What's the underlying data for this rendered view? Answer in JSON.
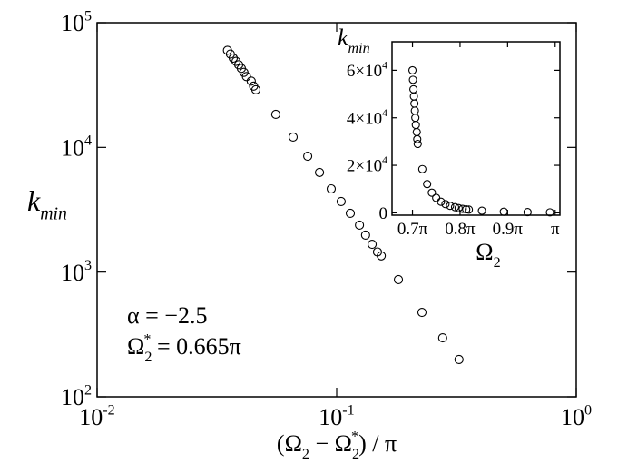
{
  "chart_data": [
    {
      "type": "scatter",
      "log_x": true,
      "log_y": true,
      "color": "#000000",
      "y_label": {
        "text": "k",
        "sub": "min"
      },
      "x_label": {
        "open": "(Ω",
        "sub1": "2",
        "mid": " − Ω",
        "sub2": "2",
        "sup2": "*",
        "close": ") / π"
      },
      "annotations": [
        {
          "text": "α = −2.5"
        },
        {
          "text": "Ω",
          "sub": "2",
          "sup": "*",
          "rest": " = 0.665π"
        }
      ],
      "xlim": [
        0.01,
        1
      ],
      "xticks": [
        {
          "value": 0.01,
          "label": "10",
          "sup": "-2"
        },
        {
          "value": 0.1,
          "label": "10",
          "sup": "-1"
        },
        {
          "value": 1,
          "label": "10",
          "sup": "0"
        }
      ],
      "ylim": [
        100,
        100000
      ],
      "yticks": [
        {
          "value": 100,
          "label": "10",
          "sup": "2"
        },
        {
          "value": 1000,
          "label": "10",
          "sup": "3"
        },
        {
          "value": 10000,
          "label": "10",
          "sup": "4"
        },
        {
          "value": 100000,
          "label": "10",
          "sup": "5"
        }
      ],
      "x": [
        0.035,
        0.036,
        0.037,
        0.038,
        0.039,
        0.04,
        0.041,
        0.042,
        0.044,
        0.045,
        0.046,
        0.0557,
        0.0658,
        0.0757,
        0.0848,
        0.0949,
        0.1044,
        0.114,
        0.1245,
        0.132,
        0.1406,
        0.148,
        0.1535,
        0.181,
        0.227,
        0.277,
        0.324
      ],
      "values": [
        60000,
        56000,
        52000,
        49000,
        46000,
        43000,
        40000,
        37000,
        34000,
        31000,
        29000,
        18400,
        12100,
        8500,
        6300,
        4650,
        3680,
        2960,
        2380,
        1980,
        1670,
        1450,
        1350,
        870,
        475,
        297,
        199
      ]
    },
    {
      "type": "scatter",
      "log_x": false,
      "log_y": false,
      "color": "#000000",
      "y_label": {
        "text": "k",
        "sub": "min"
      },
      "x_label": {
        "text": "Ω",
        "sub": "2"
      },
      "xlim": [
        0.657,
        1.01
      ],
      "xticks": [
        {
          "value": 0.7,
          "label": "0.7π"
        },
        {
          "value": 0.8,
          "label": "0.8π"
        },
        {
          "value": 0.9,
          "label": "0.9π"
        },
        {
          "value": 1,
          "label": "π"
        }
      ],
      "ylim": [
        -1000,
        72000
      ],
      "yticks": [
        0,
        {
          "value": 20000,
          "label": "2×10",
          "sup": "4"
        },
        {
          "value": 40000,
          "label": "4×10",
          "sup": "4"
        },
        {
          "value": 60000,
          "label": "6×10",
          "sup": "4"
        }
      ],
      "x": [
        0.7,
        0.701,
        0.702,
        0.703,
        0.704,
        0.705,
        0.706,
        0.707,
        0.709,
        0.71,
        0.711,
        0.7207,
        0.7308,
        0.7407,
        0.7498,
        0.7599,
        0.7694,
        0.779,
        0.7895,
        0.797,
        0.8056,
        0.813,
        0.8185,
        0.846,
        0.892,
        0.942,
        0.989
      ],
      "values": [
        60000,
        56000,
        52000,
        49000,
        46000,
        43000,
        40000,
        37000,
        34000,
        31000,
        29000,
        18400,
        12100,
        8500,
        6300,
        4650,
        3680,
        2960,
        2380,
        1980,
        1670,
        1450,
        1350,
        870,
        475,
        297,
        199
      ]
    }
  ]
}
